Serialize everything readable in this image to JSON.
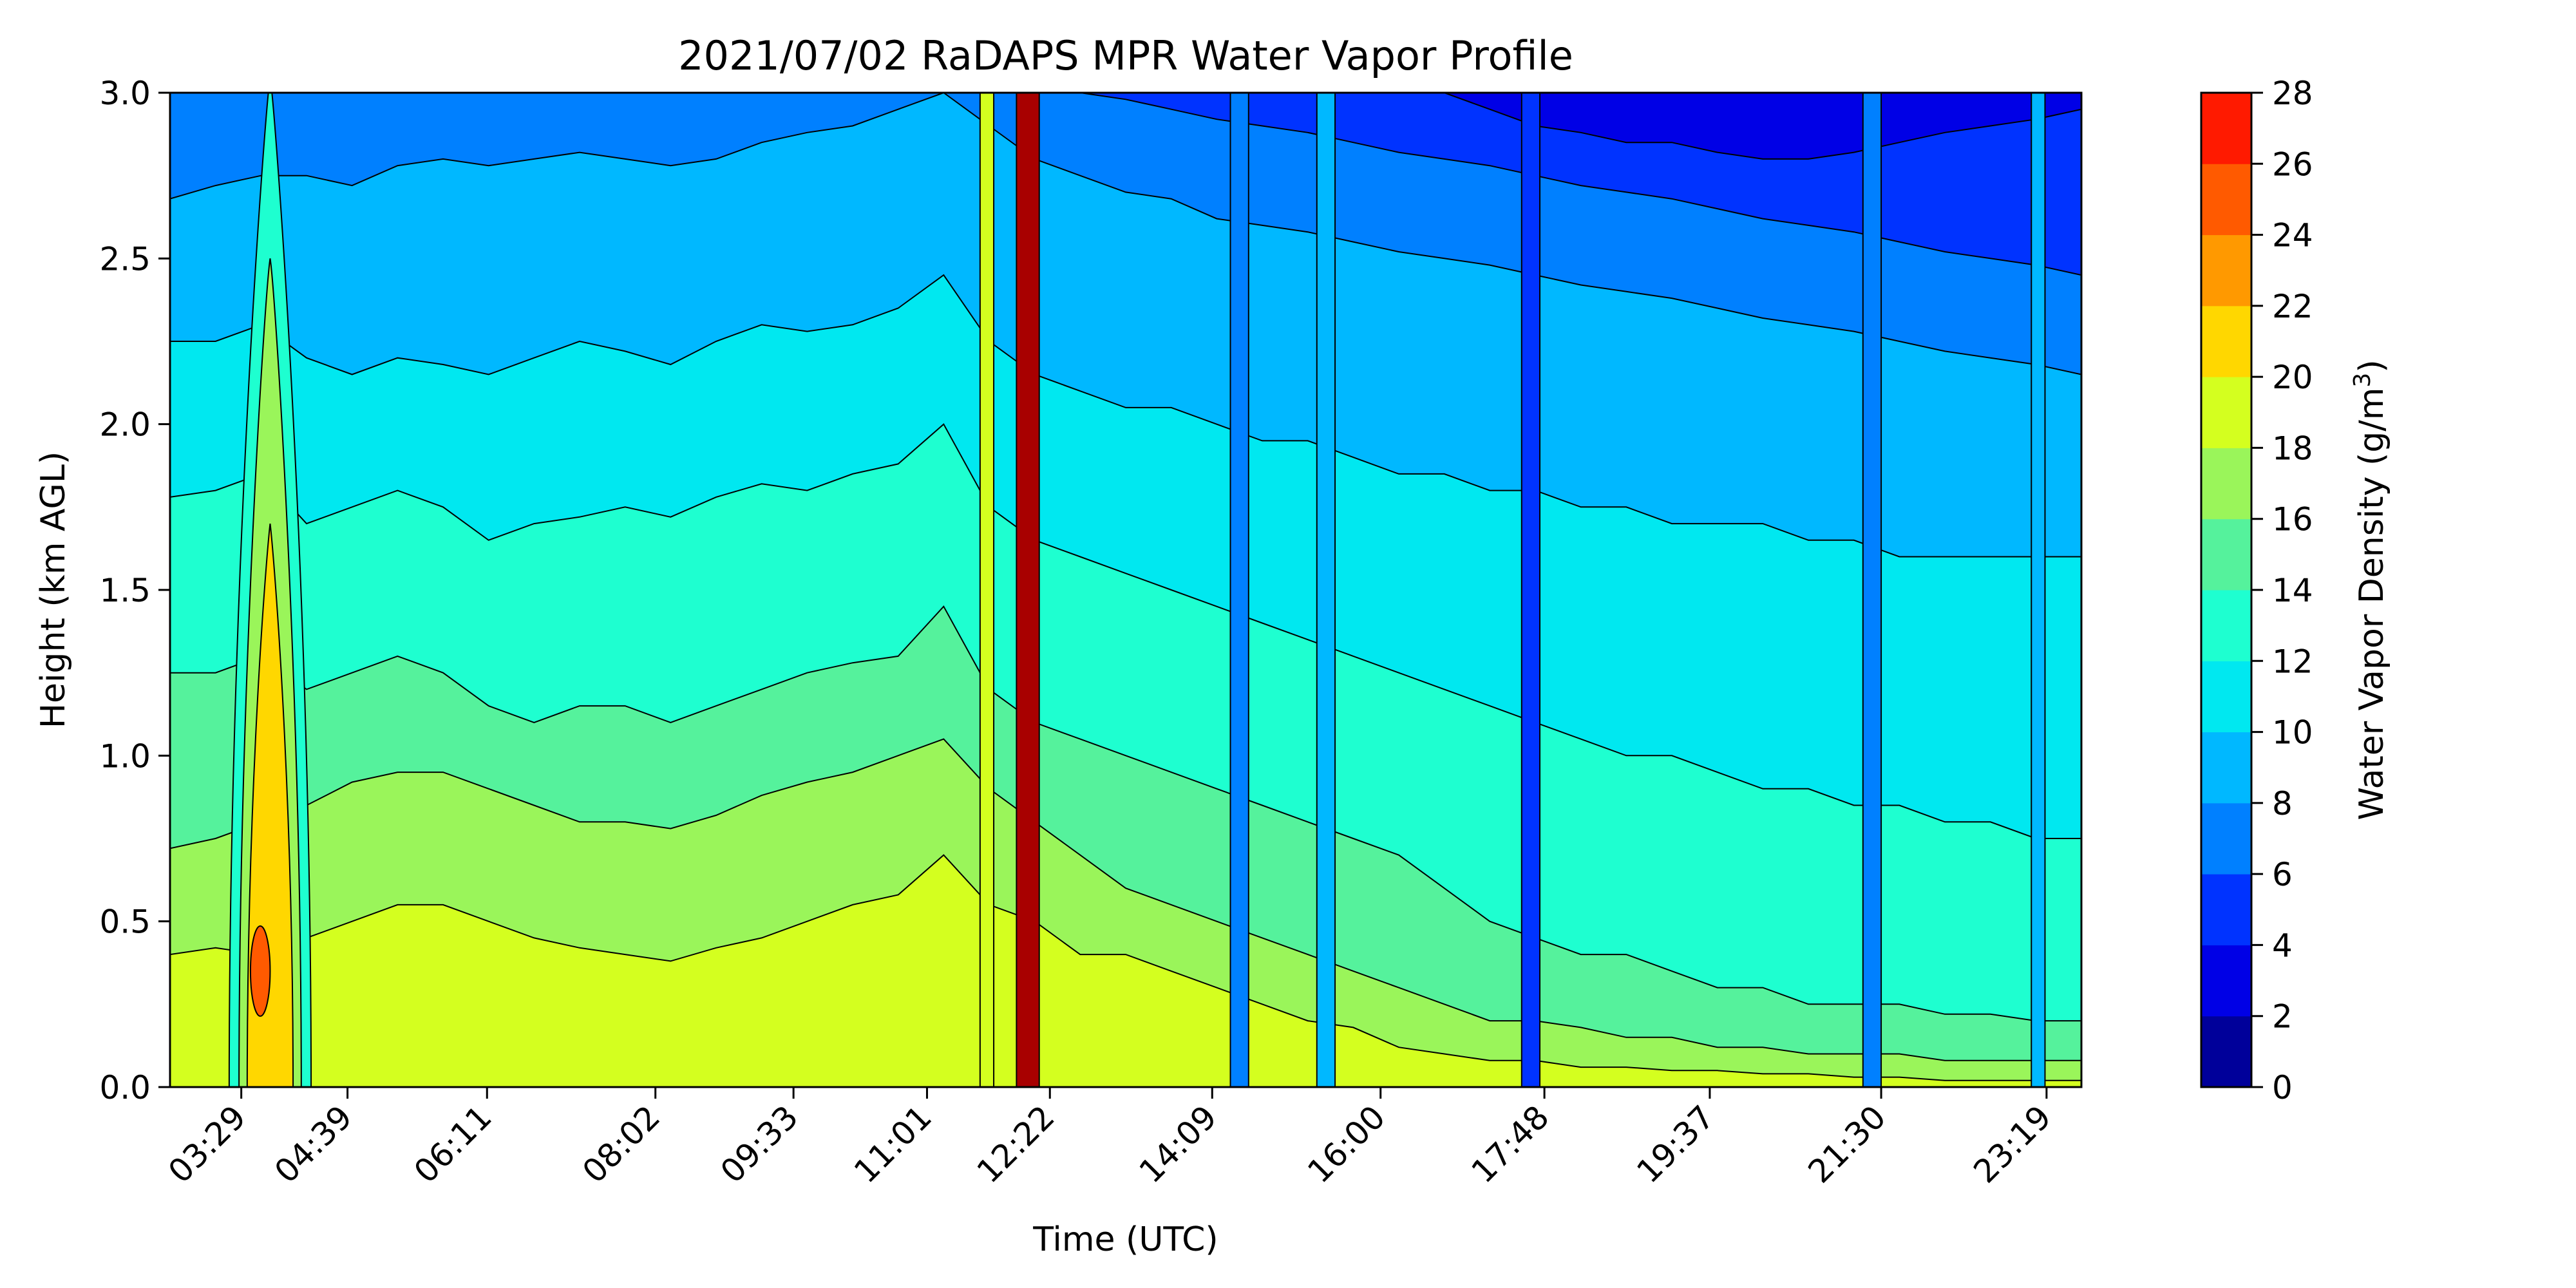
{
  "chart_data": {
    "type": "heatmap",
    "title": "2021/07/02 RaDAPS MPR Water Vapor Profile",
    "xlabel": "Time (UTC)",
    "ylabel": "Height (km AGL)",
    "x_tick_labels": [
      "03:29",
      "04:39",
      "06:11",
      "08:02",
      "09:33",
      "11:01",
      "12:22",
      "14:09",
      "16:00",
      "17:48",
      "19:37",
      "21:30",
      "23:19"
    ],
    "x_tick_values_hours": [
      3.483,
      4.65,
      6.183,
      8.033,
      9.55,
      11.017,
      12.367,
      14.15,
      16.0,
      17.8,
      19.617,
      21.5,
      23.317
    ],
    "xlim_hours": [
      2.7,
      23.7
    ],
    "y_ticks": [
      0.0,
      0.5,
      1.0,
      1.5,
      2.0,
      2.5,
      3.0
    ],
    "y_tick_labels": [
      "0.0",
      "0.5",
      "1.0",
      "1.5",
      "2.0",
      "2.5",
      "3.0"
    ],
    "ylim": [
      0.0,
      3.0
    ],
    "colorbar": {
      "label": "Water Vapor Density (g/m",
      "label_superscript": "3",
      "label_close": ")",
      "levels": [
        0,
        2,
        4,
        6,
        8,
        10,
        12,
        14,
        16,
        18,
        20,
        22,
        24,
        26,
        28
      ],
      "tick_labels": [
        "0",
        "2",
        "4",
        "6",
        "8",
        "10",
        "12",
        "14",
        "16",
        "18",
        "20",
        "22",
        "24",
        "26",
        "28"
      ],
      "colors": [
        "#00009a",
        "#0000e6",
        "#0033ff",
        "#0080ff",
        "#00b8ff",
        "#00e8f0",
        "#1effd0",
        "#55f29c",
        "#9af55a",
        "#d4ff1f",
        "#ffd700",
        "#ff9900",
        "#ff5a00",
        "#ff1a00",
        "#a80000"
      ]
    },
    "surface_level_boundaries": [
      {
        "level": 18,
        "heights_km": [
          0.4,
          0.42,
          0.4,
          0.45,
          0.5,
          0.55,
          0.55,
          0.5,
          0.45,
          0.42,
          0.4,
          0.38,
          0.42,
          0.45,
          0.5,
          0.55,
          0.58,
          0.7,
          0.55,
          0.5,
          0.4,
          0.4,
          0.35,
          0.3,
          0.25,
          0.2,
          0.18,
          0.12,
          0.1,
          0.08,
          0.08,
          0.06,
          0.06,
          0.05,
          0.05,
          0.04,
          0.04,
          0.03,
          0.03,
          0.02,
          0.02,
          0.02,
          0.02
        ]
      },
      {
        "level": 16,
        "heights_km": [
          0.72,
          0.75,
          0.8,
          0.85,
          0.92,
          0.95,
          0.95,
          0.9,
          0.85,
          0.8,
          0.8,
          0.78,
          0.82,
          0.88,
          0.92,
          0.95,
          1.0,
          1.05,
          0.9,
          0.8,
          0.7,
          0.6,
          0.55,
          0.5,
          0.45,
          0.4,
          0.35,
          0.3,
          0.25,
          0.2,
          0.2,
          0.18,
          0.15,
          0.15,
          0.12,
          0.12,
          0.1,
          0.1,
          0.1,
          0.08,
          0.08,
          0.08,
          0.08
        ]
      },
      {
        "level": 14,
        "heights_km": [
          1.25,
          1.25,
          1.3,
          1.2,
          1.25,
          1.3,
          1.25,
          1.15,
          1.1,
          1.15,
          1.15,
          1.1,
          1.15,
          1.2,
          1.25,
          1.28,
          1.3,
          1.45,
          1.2,
          1.1,
          1.05,
          1.0,
          0.95,
          0.9,
          0.85,
          0.8,
          0.75,
          0.7,
          0.6,
          0.5,
          0.45,
          0.4,
          0.4,
          0.35,
          0.3,
          0.3,
          0.25,
          0.25,
          0.25,
          0.22,
          0.22,
          0.2,
          0.2
        ]
      },
      {
        "level": 12,
        "heights_km": [
          1.78,
          1.8,
          1.85,
          1.7,
          1.75,
          1.8,
          1.75,
          1.65,
          1.7,
          1.72,
          1.75,
          1.72,
          1.78,
          1.82,
          1.8,
          1.85,
          1.88,
          2.0,
          1.75,
          1.65,
          1.6,
          1.55,
          1.5,
          1.45,
          1.4,
          1.35,
          1.3,
          1.25,
          1.2,
          1.15,
          1.1,
          1.05,
          1.0,
          1.0,
          0.95,
          0.9,
          0.9,
          0.85,
          0.85,
          0.8,
          0.8,
          0.75,
          0.75
        ]
      },
      {
        "level": 10,
        "heights_km": [
          2.25,
          2.25,
          2.3,
          2.2,
          2.15,
          2.2,
          2.18,
          2.15,
          2.2,
          2.25,
          2.22,
          2.18,
          2.25,
          2.3,
          2.28,
          2.3,
          2.35,
          2.45,
          2.25,
          2.15,
          2.1,
          2.05,
          2.05,
          2.0,
          1.95,
          1.95,
          1.9,
          1.85,
          1.85,
          1.8,
          1.8,
          1.75,
          1.75,
          1.7,
          1.7,
          1.7,
          1.65,
          1.65,
          1.6,
          1.6,
          1.6,
          1.6,
          1.6
        ]
      },
      {
        "level": 8,
        "heights_km": [
          2.68,
          2.72,
          2.75,
          2.75,
          2.72,
          2.78,
          2.8,
          2.78,
          2.8,
          2.82,
          2.8,
          2.78,
          2.8,
          2.85,
          2.88,
          2.9,
          2.95,
          3.0,
          2.9,
          2.8,
          2.75,
          2.7,
          2.68,
          2.62,
          2.6,
          2.58,
          2.55,
          2.52,
          2.5,
          2.48,
          2.45,
          2.42,
          2.4,
          2.38,
          2.35,
          2.32,
          2.3,
          2.28,
          2.25,
          2.22,
          2.2,
          2.18,
          2.15
        ]
      },
      {
        "level": 6,
        "heights_km": [
          3.05,
          3.05,
          3.05,
          3.05,
          3.05,
          3.05,
          3.05,
          3.05,
          3.05,
          3.05,
          3.05,
          3.05,
          3.05,
          3.05,
          3.05,
          3.05,
          3.05,
          3.05,
          3.05,
          3.02,
          3.0,
          2.98,
          2.95,
          2.92,
          2.9,
          2.88,
          2.85,
          2.82,
          2.8,
          2.78,
          2.75,
          2.72,
          2.7,
          2.68,
          2.65,
          2.62,
          2.6,
          2.58,
          2.55,
          2.52,
          2.5,
          2.48,
          2.45
        ]
      },
      {
        "level": 4,
        "heights_km": [
          3.1,
          3.1,
          3.1,
          3.1,
          3.1,
          3.1,
          3.1,
          3.1,
          3.1,
          3.1,
          3.1,
          3.1,
          3.1,
          3.1,
          3.1,
          3.1,
          3.1,
          3.1,
          3.1,
          3.1,
          3.1,
          3.1,
          3.1,
          3.1,
          3.1,
          3.1,
          3.1,
          3.05,
          3.0,
          2.95,
          2.9,
          2.88,
          2.85,
          2.85,
          2.82,
          2.8,
          2.8,
          2.82,
          2.85,
          2.88,
          2.9,
          2.92,
          2.95
        ]
      }
    ],
    "boundary_x_hours_start": 2.7,
    "boundary_x_hours_step": 0.5,
    "moist_plume": {
      "x_hours": [
        3.35,
        4.25
      ],
      "peak_value": 24,
      "core_value": 20
    },
    "dry_columns": [
      {
        "x_hours": [
          11.6,
          11.75
        ],
        "value": 18
      },
      {
        "x_hours": [
          12.0,
          12.25
        ],
        "value": 28
      },
      {
        "x_hours": [
          14.35,
          14.55
        ],
        "value": 6
      },
      {
        "x_hours": [
          15.3,
          15.5
        ],
        "value": 8
      },
      {
        "x_hours": [
          17.55,
          17.75
        ],
        "value": 4
      },
      {
        "x_hours": [
          21.3,
          21.5
        ],
        "value": 6
      },
      {
        "x_hours": [
          23.15,
          23.3
        ],
        "value": 8
      }
    ]
  }
}
